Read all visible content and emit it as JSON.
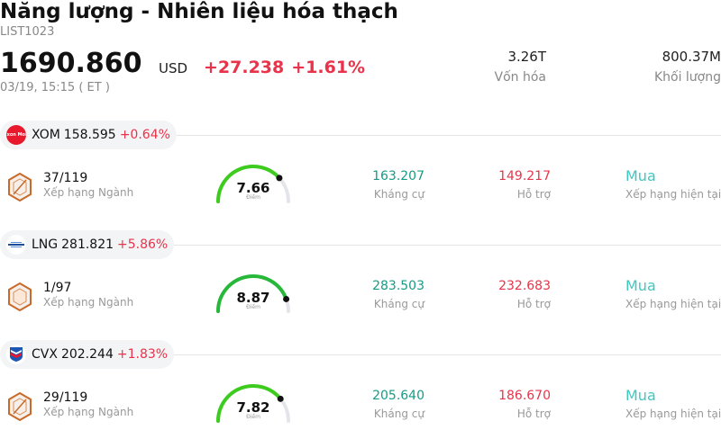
{
  "header": {
    "title": "Năng lượng - Nhiên liệu hóa thạch",
    "code": "LIST1023",
    "price": "1690.860",
    "currency": "USD",
    "change_abs": "+27.238",
    "change_pct": "+1.61%",
    "time": "03/19, 15:15  ( ET )"
  },
  "stats": [
    {
      "value": "3.26T",
      "label": "Vốn hóa"
    },
    {
      "value": "800.37M",
      "label": "Khối lượng"
    }
  ],
  "labels": {
    "rank": "Xếp hạng Ngành",
    "score": "Điểm",
    "resistance": "Kháng cự",
    "support": "Hỗ trợ",
    "rating": "Xếp hạng hiện tại"
  },
  "colors": {
    "up_red": "#e8334a",
    "resist_teal": "#169b86",
    "rating_teal": "#3fc7c0",
    "gauge_green": "#3dcc1e"
  },
  "stocks": [
    {
      "ticker": "XOM",
      "price": "158.595",
      "change": "+0.64%",
      "logo": "exxon-mobil-logo",
      "logo_text": "Exxon Mobil",
      "rank": "37/119",
      "score": "7.66",
      "score_fraction": 0.766,
      "resistance": "163.207",
      "support": "149.217",
      "rating": "Mua"
    },
    {
      "ticker": "LNG",
      "price": "281.821",
      "change": "+5.86%",
      "logo": "cheniere-logo",
      "rank": "1/97",
      "score": "8.87",
      "score_fraction": 0.887,
      "resistance": "283.503",
      "support": "232.683",
      "rating": "Mua"
    },
    {
      "ticker": "CVX",
      "price": "202.244",
      "change": "+1.83%",
      "logo": "chevron-logo",
      "rank": "29/119",
      "score": "7.82",
      "score_fraction": 0.782,
      "resistance": "205.640",
      "support": "186.670",
      "rating": "Mua"
    }
  ]
}
